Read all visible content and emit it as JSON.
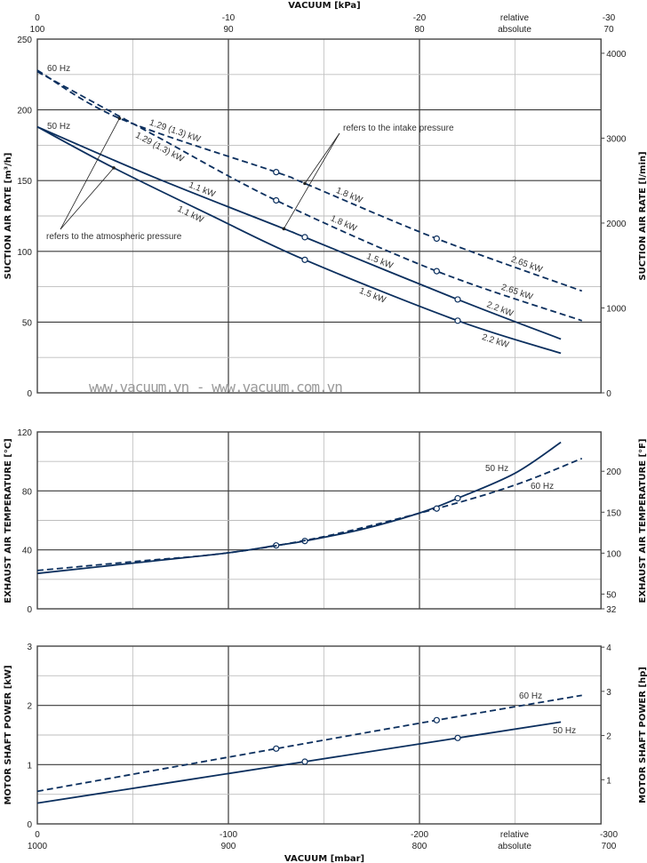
{
  "colors": {
    "series": "#0b2f5e",
    "grid_major": "#3a3a3a",
    "grid_minor": "#bdbdbd",
    "watermark": "#9a9a9a"
  },
  "top_axis": {
    "title": "VACUUM  [kPa]",
    "relative": [
      "0",
      "-10",
      "-20",
      "relative",
      "-30"
    ],
    "absolute": [
      "100",
      "90",
      "80",
      "absolute",
      "70"
    ]
  },
  "bottom_axis": {
    "title": "VACUUM  [mbar]",
    "relative": [
      "0",
      "-100",
      "-200",
      "relative",
      "-300"
    ],
    "absolute": [
      "1000",
      "900",
      "800",
      "absolute",
      "700"
    ]
  },
  "watermark": "www.vacuum.vn - www.vacuum.com.vn",
  "annotations": {
    "atmospheric": {
      "text": "refers to the atmospheric pressure",
      "targets": [
        [
          -43,
          194
        ],
        [
          -40,
          159
        ]
      ]
    },
    "intake": {
      "text": "refers to the intake pressure",
      "targets": [
        [
          -140,
          148
        ],
        [
          -129,
          116
        ]
      ]
    }
  },
  "chart_data": [
    {
      "type": "line",
      "ylabel": "SUCTION AIR RATE  [m³/h]",
      "ylabel_right": "SUCTION AIR RATE  [l/min]",
      "xlabel": "VACUUM [mbar]",
      "xlim": [
        0,
        -295
      ],
      "ylim": [
        0,
        250
      ],
      "yticks": [
        "0",
        "50",
        "100",
        "150",
        "200",
        "250"
      ],
      "yticks_right": [
        "0",
        "1000",
        "2000",
        "3000",
        "4000"
      ],
      "grid": true,
      "hz_labels": [
        "60 Hz",
        "50 Hz"
      ],
      "series": [
        {
          "name": "60 Hz (atmospheric)",
          "style": "dashed",
          "points": [
            [
              0,
              228
            ],
            [
              -43,
              194
            ],
            [
              -125,
              156
            ],
            [
              -140,
              148
            ],
            [
              -209,
              109
            ],
            [
              -285,
              72
            ]
          ],
          "markers": [
            [
              -125,
              156
            ],
            [
              -209,
              109
            ]
          ],
          "labels": [
            {
              "text": "1.29 (1.3) kW",
              "x": -71
            },
            {
              "text": "1.8 kW",
              "x": -162
            },
            {
              "text": "2.65 kW",
              "x": -255
            }
          ]
        },
        {
          "name": "60 Hz (intake)",
          "style": "dashed",
          "points": [
            [
              0,
              227
            ],
            [
              -60,
              183
            ],
            [
              -125,
              136
            ],
            [
              -209,
              86
            ],
            [
              -285,
              51
            ]
          ],
          "markers": [
            [
              -125,
              136
            ],
            [
              -209,
              86
            ]
          ],
          "labels": [
            {
              "text": "1.29 (1.3) kW",
              "x": -66
            },
            {
              "text": "1.8 kW",
              "x": -159
            },
            {
              "text": "2.65 kW",
              "x": -250
            }
          ]
        },
        {
          "name": "50 Hz (atmospheric)",
          "style": "solid",
          "points": [
            [
              0,
              188
            ],
            [
              -60,
              153
            ],
            [
              -129,
              116
            ],
            [
              -140,
              110
            ],
            [
              -220,
              66
            ],
            [
              -274,
              38
            ]
          ],
          "markers": [
            [
              -140,
              110
            ],
            [
              -220,
              66
            ]
          ],
          "labels": [
            {
              "text": "1.1 kW",
              "x": -85
            },
            {
              "text": "1.5 kW",
              "x": -178
            },
            {
              "text": "2.2 kW",
              "x": -241
            }
          ]
        },
        {
          "name": "50 Hz (intake)",
          "style": "solid",
          "points": [
            [
              0,
              188
            ],
            [
              -40,
              159
            ],
            [
              -90,
              126
            ],
            [
              -140,
              94
            ],
            [
              -220,
              51
            ],
            [
              -274,
              28
            ]
          ],
          "markers": [
            [
              -140,
              94
            ],
            [
              -220,
              51
            ]
          ],
          "labels": [
            {
              "text": "1.1 kW",
              "x": -82
            },
            {
              "text": "1.5 kW",
              "x": -177
            },
            {
              "text": "2.2 kW",
              "x": -241
            }
          ]
        }
      ]
    },
    {
      "type": "line",
      "ylabel": "EXHAUST AIR TEMPERATURE  [°C]",
      "ylabel_right": "EXHAUST AIR TEMPERATURE  [°F]",
      "xlim": [
        0,
        -295
      ],
      "ylim": [
        0,
        120
      ],
      "yticks": [
        "0",
        "40",
        "80",
        "120"
      ],
      "yticks_right": [
        "32",
        "50",
        "100",
        "150",
        "200"
      ],
      "grid": true,
      "hz_labels": [
        "50 Hz",
        "60 Hz"
      ],
      "series": [
        {
          "name": "50 Hz",
          "style": "solid",
          "points": [
            [
              0,
              24
            ],
            [
              -50,
              31
            ],
            [
              -100,
              38
            ],
            [
              -125,
              43
            ],
            [
              -140,
              46
            ],
            [
              -170,
              54
            ],
            [
              -200,
              65
            ],
            [
              -220,
              75
            ],
            [
              -250,
              92
            ],
            [
              -274,
              113
            ]
          ],
          "markers": [
            [
              -125,
              43
            ],
            [
              -140,
              46
            ],
            [
              -220,
              75
            ]
          ],
          "labels": []
        },
        {
          "name": "60 Hz",
          "style": "dashed",
          "points": [
            [
              0,
              26
            ],
            [
              -50,
              32
            ],
            [
              -100,
              38
            ],
            [
              -150,
              49
            ],
            [
              -209,
              68
            ],
            [
              -250,
              84
            ],
            [
              -285,
              102
            ]
          ],
          "markers": [
            [
              -209,
              68
            ]
          ],
          "labels": []
        }
      ]
    },
    {
      "type": "line",
      "ylabel": "MOTOR SHAFT POWER  [kW]",
      "ylabel_right": "MOTOR SHAFT POWER  [hp]",
      "xlim": [
        0,
        -295
      ],
      "ylim": [
        0,
        3
      ],
      "yticks": [
        "0",
        "1",
        "2",
        "3"
      ],
      "yticks_right": [
        "1",
        "2",
        "3",
        "4"
      ],
      "grid": true,
      "hz_labels": [
        "60 Hz",
        "50 Hz"
      ],
      "series": [
        {
          "name": "60 Hz",
          "style": "dashed",
          "points": [
            [
              0,
              0.55
            ],
            [
              -125,
              1.27
            ],
            [
              -209,
              1.75
            ],
            [
              -285,
              2.17
            ]
          ],
          "markers": [
            [
              -125,
              1.27
            ],
            [
              -209,
              1.75
            ]
          ],
          "labels": []
        },
        {
          "name": "50 Hz",
          "style": "solid",
          "points": [
            [
              0,
              0.35
            ],
            [
              -140,
              1.05
            ],
            [
              -220,
              1.45
            ],
            [
              -274,
              1.72
            ]
          ],
          "markers": [
            [
              -140,
              1.05
            ],
            [
              -220,
              1.45
            ]
          ],
          "labels": []
        }
      ]
    }
  ]
}
